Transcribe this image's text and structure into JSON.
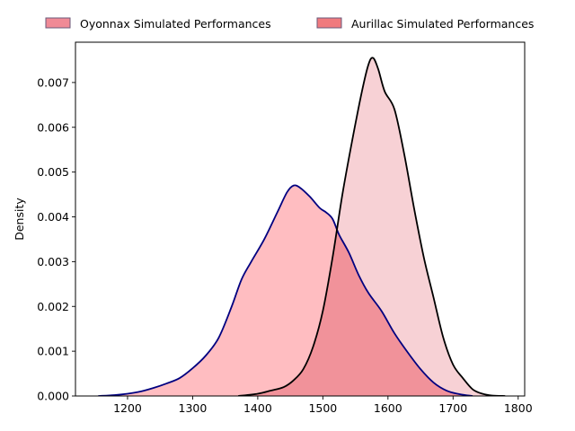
{
  "chart_data": {
    "type": "area",
    "title": "",
    "xlabel": "",
    "ylabel": "Density",
    "xlim": [
      1120,
      1810
    ],
    "ylim": [
      0,
      0.0079
    ],
    "grid": false,
    "legend_placement": "top-center",
    "x_ticks": [
      1200,
      1300,
      1400,
      1500,
      1600,
      1700,
      1800
    ],
    "x_tick_labels": [
      "1200",
      "1300",
      "1400",
      "1500",
      "1600",
      "1700",
      "1800"
    ],
    "y_ticks": [
      0,
      0.001,
      0.002,
      0.003,
      0.004,
      0.005,
      0.006,
      0.007
    ],
    "y_tick_labels": [
      "0.000",
      "0.001",
      "0.002",
      "0.003",
      "0.004",
      "0.005",
      "0.006",
      "0.007"
    ],
    "series": [
      {
        "name": "Oyonnax Simulated Performances",
        "fill_color": "#ffb6ba",
        "legend_color": "#f08a96",
        "line_color": "#000080",
        "x": [
          1155,
          1180,
          1200,
          1220,
          1240,
          1260,
          1280,
          1300,
          1320,
          1340,
          1360,
          1375,
          1390,
          1410,
          1430,
          1445,
          1455,
          1465,
          1480,
          1495,
          1505,
          1515,
          1525,
          1540,
          1555,
          1570,
          1590,
          1610,
          1630,
          1650,
          1670,
          1690,
          1710,
          1730
        ],
        "values": [
          0.0,
          2e-05,
          5e-05,
          0.0001,
          0.00018,
          0.00028,
          0.0004,
          0.00062,
          0.0009,
          0.0013,
          0.002,
          0.0026,
          0.003,
          0.0035,
          0.0041,
          0.00455,
          0.0047,
          0.00465,
          0.00445,
          0.0042,
          0.0041,
          0.00395,
          0.0036,
          0.0032,
          0.0027,
          0.0023,
          0.0019,
          0.0014,
          0.00098,
          0.0006,
          0.0003,
          0.00012,
          4e-05,
          0.0
        ]
      },
      {
        "name": "Aurillac Simulated Performances",
        "fill_color": "#f4c2c7",
        "legend_color": "#f07a7e",
        "line_color": "#000000",
        "x": [
          1370,
          1400,
          1420,
          1440,
          1455,
          1470,
          1485,
          1500,
          1515,
          1530,
          1545,
          1560,
          1570,
          1577,
          1585,
          1595,
          1610,
          1625,
          1640,
          1655,
          1670,
          1685,
          1700,
          1715,
          1730,
          1745,
          1760,
          1780
        ],
        "values": [
          0.0,
          5e-05,
          0.00012,
          0.0002,
          0.00035,
          0.0006,
          0.0011,
          0.0019,
          0.0031,
          0.0045,
          0.0057,
          0.0068,
          0.0074,
          0.00755,
          0.0073,
          0.0068,
          0.0064,
          0.0054,
          0.0042,
          0.0031,
          0.0022,
          0.0013,
          0.0007,
          0.0004,
          0.00015,
          5e-05,
          1e-05,
          0.0
        ]
      }
    ]
  }
}
